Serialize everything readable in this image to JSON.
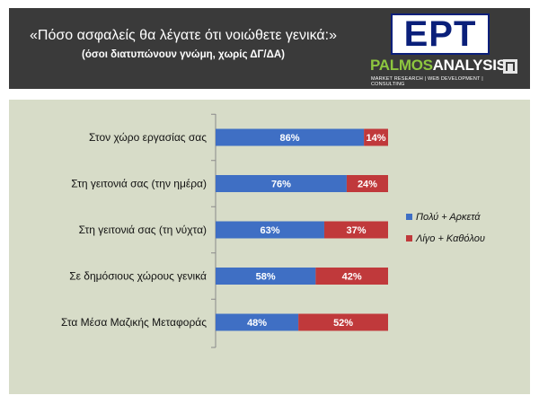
{
  "header": {
    "title": "«Πόσο ασφαλείς θα λέγατε ότι νοιώθετε γενικά:»",
    "subtitle": "(όσοι διατυπώνουν γνώμη, χωρίς ΔΓ/ΔΑ)",
    "logo_ert": "ΕΡΤ",
    "logo_palmos": "PALMOS",
    "logo_analysis": "ANALYSIS",
    "logo_tagline": "MARKET RESEARCH | WEB DEVELOPMENT | CONSULTING"
  },
  "colors": {
    "positive": "#3f6fc4",
    "negative": "#c0393b",
    "panel": "#d7dcc8",
    "header": "#3a3a3a"
  },
  "chart_data": {
    "type": "bar",
    "orientation": "horizontal",
    "stacked": true,
    "percent": true,
    "title": "«Πόσο ασφαλείς θα λέγατε ότι νοιώθετε γενικά:»",
    "subtitle": "(όσοι διατυπώνουν γνώμη, χωρίς ΔΓ/ΔΑ)",
    "categories": [
      "Στον χώρο εργασίας σας",
      "Στη γειτονιά σας (την ημέρα)",
      "Στη γειτονιά σας (τη νύχτα)",
      "Σε δημόσιους χώρους γενικά",
      "Στα Μέσα Μαζικής Μεταφοράς"
    ],
    "series": [
      {
        "name": "Πολύ + Αρκετά",
        "values": [
          86,
          76,
          63,
          58,
          48
        ],
        "labels": [
          "86%",
          "76%",
          "63%",
          "58%",
          "48%"
        ]
      },
      {
        "name": "Λίγο + Καθόλου",
        "values": [
          14,
          24,
          37,
          42,
          52
        ],
        "labels": [
          "14%",
          "24%",
          "37%",
          "42%",
          "52%"
        ]
      }
    ],
    "xlim": [
      0,
      100
    ],
    "grid": false,
    "legend": "right"
  }
}
